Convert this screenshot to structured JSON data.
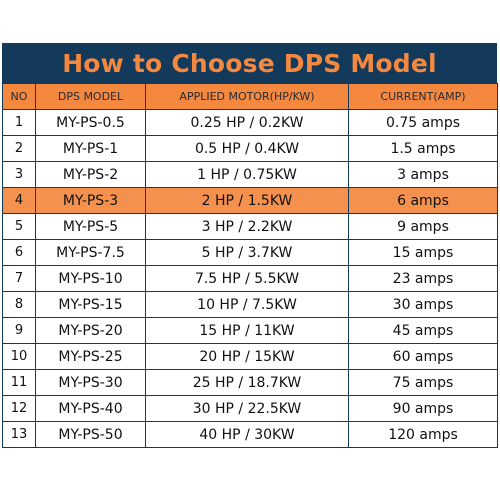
{
  "title": "How to Choose DPS Model",
  "headers": {
    "no": "NO",
    "model": "DPS MODEL",
    "motor": "APPLIED MOTOR(HP/KW)",
    "current": "CURRENT(AMP)"
  },
  "highlight_row": 4,
  "colors": {
    "title_bg": "#143a5b",
    "accent_orange": "#f5883f",
    "highlight_bg": "#f4914f"
  },
  "rows": [
    {
      "no": "1",
      "model": "MY-PS-0.5",
      "motor": "0.25 HP / 0.2KW",
      "current": "0.75 amps"
    },
    {
      "no": "2",
      "model": "MY-PS-1",
      "motor": "0.5 HP / 0.4KW",
      "current": "1.5 amps"
    },
    {
      "no": "3",
      "model": "MY-PS-2",
      "motor": "1 HP / 0.75KW",
      "current": "3 amps"
    },
    {
      "no": "4",
      "model": "MY-PS-3",
      "motor": "2 HP / 1.5KW",
      "current": "6 amps"
    },
    {
      "no": "5",
      "model": "MY-PS-5",
      "motor": "3 HP / 2.2KW",
      "current": "9 amps"
    },
    {
      "no": "6",
      "model": "MY-PS-7.5",
      "motor": "5 HP / 3.7KW",
      "current": "15 amps"
    },
    {
      "no": "7",
      "model": "MY-PS-10",
      "motor": "7.5 HP / 5.5KW",
      "current": "23 amps"
    },
    {
      "no": "8",
      "model": "MY-PS-15",
      "motor": "10 HP / 7.5KW",
      "current": "30 amps"
    },
    {
      "no": "9",
      "model": "MY-PS-20",
      "motor": "15 HP / 11KW",
      "current": "45 amps"
    },
    {
      "no": "10",
      "model": "MY-PS-25",
      "motor": "20 HP / 15KW",
      "current": "60 amps"
    },
    {
      "no": "11",
      "model": "MY-PS-30",
      "motor": "25 HP / 18.7KW",
      "current": "75 amps"
    },
    {
      "no": "12",
      "model": "MY-PS-40",
      "motor": "30 HP / 22.5KW",
      "current": "90 amps"
    },
    {
      "no": "13",
      "model": "MY-PS-50",
      "motor": "40 HP / 30KW",
      "current": "120 amps"
    }
  ]
}
